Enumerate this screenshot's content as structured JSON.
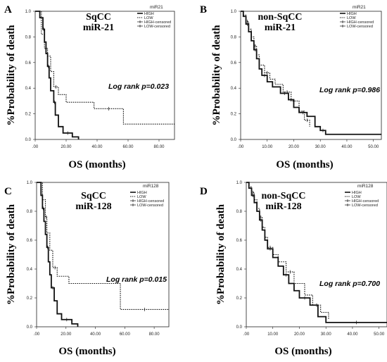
{
  "chart_data": [
    {
      "panel": "A",
      "type": "line",
      "title": "SqCC",
      "subtitle": "miR-21",
      "xlabel": "OS (months)",
      "ylabel": "%Probability of death",
      "annotation": "Log rank p=0.023",
      "legend_title": "miR21",
      "legend": [
        "HIGH",
        "LOW",
        "HIGH-censored",
        "LOW-censored"
      ],
      "xlim": [
        0,
        90
      ],
      "ylim": [
        0,
        1.0
      ],
      "xticks": [
        ".00",
        "20.00",
        "40.00",
        "60.00",
        "80.00"
      ],
      "xtick_values": [
        0,
        20,
        40,
        60,
        80
      ],
      "yticks": [
        "0.0",
        "0.2",
        "0.4",
        "0.6",
        "0.8",
        "1.0"
      ],
      "ytick_values": [
        0,
        0.2,
        0.4,
        0.6,
        0.8,
        1.0
      ],
      "series": [
        {
          "name": "HIGH",
          "style": "solid",
          "x": [
            0,
            3,
            5,
            6,
            7,
            8,
            9,
            10,
            12,
            13,
            15,
            18,
            24,
            28
          ],
          "y": [
            1.0,
            0.95,
            0.86,
            0.76,
            0.67,
            0.57,
            0.48,
            0.38,
            0.29,
            0.19,
            0.1,
            0.05,
            0.02,
            0.0
          ]
        },
        {
          "name": "LOW",
          "style": "dotted",
          "x": [
            0,
            4,
            6,
            8,
            10,
            12,
            15,
            20,
            38,
            57,
            90
          ],
          "y": [
            1.0,
            0.82,
            0.71,
            0.65,
            0.53,
            0.41,
            0.35,
            0.29,
            0.24,
            0.12,
            0.12
          ]
        }
      ]
    },
    {
      "panel": "B",
      "type": "line",
      "title": "non-SqCC",
      "subtitle": "miR-21",
      "xlabel": "OS (months)",
      "ylabel": "%Probability of death",
      "annotation": "Log rank p=0.986",
      "legend_title": "miR21",
      "legend": [
        "HIGH",
        "LOW",
        "HIGH-censored",
        "LOW-censored"
      ],
      "xlim": [
        0,
        53
      ],
      "ylim": [
        0,
        1.0
      ],
      "xticks": [
        ".00",
        "10.00",
        "20.00",
        "30.00",
        "40.00",
        "50.00"
      ],
      "xtick_values": [
        0,
        10,
        20,
        30,
        40,
        50
      ],
      "yticks": [
        "0.0",
        "0.2",
        "0.4",
        "0.6",
        "0.8",
        "1.0"
      ],
      "ytick_values": [
        0,
        0.2,
        0.4,
        0.6,
        0.8,
        1.0
      ],
      "series": [
        {
          "name": "HIGH",
          "style": "solid",
          "x": [
            0,
            1,
            2,
            3,
            4,
            5,
            6,
            7,
            8,
            10,
            12,
            15,
            18,
            20,
            22,
            25,
            28,
            30,
            32,
            53
          ],
          "y": [
            1.0,
            0.96,
            0.9,
            0.84,
            0.77,
            0.7,
            0.63,
            0.55,
            0.5,
            0.45,
            0.41,
            0.36,
            0.31,
            0.25,
            0.21,
            0.18,
            0.1,
            0.07,
            0.04,
            0.04
          ]
        },
        {
          "name": "LOW",
          "style": "dotted",
          "x": [
            0,
            1,
            2,
            3,
            4,
            5,
            6,
            7,
            9,
            11,
            13,
            16,
            19,
            22,
            24,
            26
          ],
          "y": [
            1.0,
            0.97,
            0.92,
            0.86,
            0.8,
            0.73,
            0.66,
            0.58,
            0.52,
            0.47,
            0.43,
            0.37,
            0.3,
            0.22,
            0.15,
            0.1
          ]
        }
      ]
    },
    {
      "panel": "C",
      "type": "line",
      "title": "SqCC",
      "subtitle": "miR-128",
      "xlabel": "OS (months)",
      "ylabel": "%Probability of death",
      "annotation": "Log rank p=0.015",
      "legend_title": "miR128",
      "legend": [
        "HIGH",
        "LOW",
        "HIGH-censored",
        "LOW-censored"
      ],
      "xlim": [
        0,
        90
      ],
      "ylim": [
        0,
        1.0
      ],
      "xticks": [
        ".00",
        "20.00",
        "40.00",
        "60.00",
        "80.00"
      ],
      "xtick_values": [
        0,
        20,
        40,
        60,
        80
      ],
      "yticks": [
        "0.0",
        "0.2",
        "0.4",
        "0.6",
        "0.8",
        "1.0"
      ],
      "ytick_values": [
        0,
        0.2,
        0.4,
        0.6,
        0.8,
        1.0
      ],
      "series": [
        {
          "name": "HIGH",
          "style": "solid",
          "x": [
            0,
            3,
            4,
            5,
            6,
            7,
            8,
            9,
            10,
            12,
            14,
            17,
            24,
            28
          ],
          "y": [
            1.0,
            0.91,
            0.82,
            0.73,
            0.64,
            0.55,
            0.45,
            0.36,
            0.27,
            0.18,
            0.09,
            0.05,
            0.02,
            0.0
          ]
        },
        {
          "name": "LOW",
          "style": "dotted",
          "x": [
            0,
            4,
            6,
            7,
            9,
            11,
            14,
            22,
            57,
            90
          ],
          "y": [
            1.0,
            0.88,
            0.76,
            0.65,
            0.53,
            0.41,
            0.35,
            0.3,
            0.12,
            0.12
          ]
        }
      ]
    },
    {
      "panel": "D",
      "type": "line",
      "title": "non-SqCC",
      "subtitle": "miR-128",
      "xlabel": "OS (months)",
      "ylabel": "%Probability of death",
      "annotation": "Log rank p=0.700",
      "legend_title": "miR128",
      "legend": [
        "HIGH",
        "LOW",
        "HIGH-censored",
        "LOW-censored"
      ],
      "xlim": [
        0,
        53
      ],
      "ylim": [
        0,
        1.0
      ],
      "xticks": [
        ".00",
        "10.00",
        "20.00",
        "30.00",
        "40.00",
        "50.00"
      ],
      "xtick_values": [
        0,
        10,
        20,
        30,
        40,
        50
      ],
      "yticks": [
        "0.0",
        "0.2",
        "0.4",
        "0.6",
        "0.8",
        "1.0"
      ],
      "ytick_values": [
        0,
        0.2,
        0.4,
        0.6,
        0.8,
        1.0
      ],
      "series": [
        {
          "name": "HIGH",
          "style": "solid",
          "x": [
            0,
            1,
            2,
            3,
            4,
            5,
            6,
            7,
            8,
            10,
            12,
            14,
            16,
            18,
            20,
            24,
            27,
            30,
            53
          ],
          "y": [
            1.0,
            0.96,
            0.91,
            0.86,
            0.8,
            0.74,
            0.67,
            0.6,
            0.54,
            0.48,
            0.42,
            0.36,
            0.3,
            0.25,
            0.2,
            0.15,
            0.07,
            0.03,
            0.03
          ]
        },
        {
          "name": "LOW",
          "style": "dotted",
          "x": [
            0,
            1,
            2,
            3,
            4,
            5,
            6,
            7,
            8,
            10,
            12,
            15,
            18,
            22,
            25,
            28,
            31
          ],
          "y": [
            1.0,
            0.97,
            0.93,
            0.88,
            0.82,
            0.76,
            0.69,
            0.62,
            0.55,
            0.5,
            0.45,
            0.38,
            0.3,
            0.22,
            0.15,
            0.1,
            0.05
          ]
        }
      ]
    }
  ]
}
